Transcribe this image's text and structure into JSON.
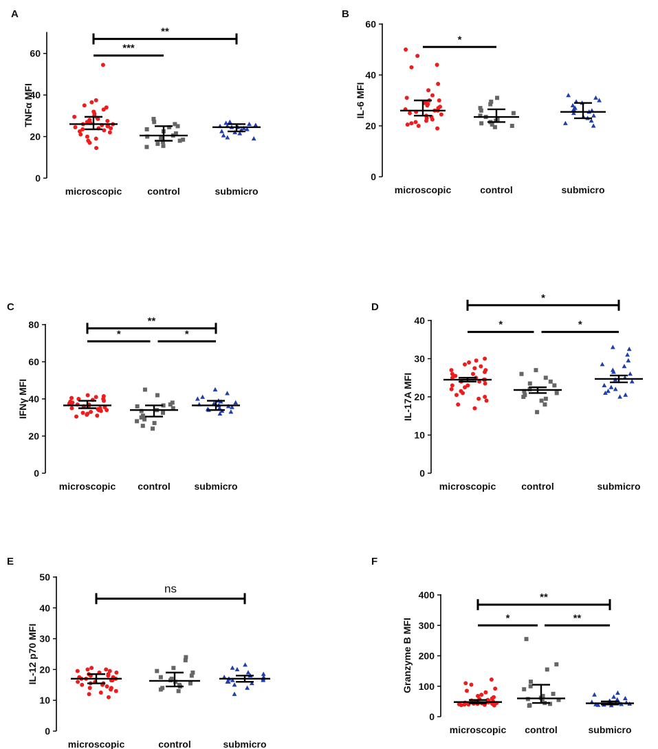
{
  "figure": {
    "colors": {
      "microscopic": "#ee1c1c",
      "control": "#666666",
      "submicro": "#1f3fae"
    },
    "marker_shapes": {
      "microscopic": "circle",
      "control": "square",
      "submicro": "triangle"
    }
  },
  "chart_data": [
    {
      "panel": "A",
      "type": "scatter",
      "ylabel": "TNFα MFI",
      "categories": [
        "microscopic",
        "control",
        "submicro"
      ],
      "ylim": [
        0,
        70
      ],
      "yticks": [
        0,
        20,
        40,
        60
      ],
      "series": [
        {
          "name": "microscopic",
          "mean": 26,
          "err": [
            23.5,
            29.5
          ],
          "values": [
            54.5,
            37.5,
            36.5,
            35,
            34,
            33,
            32,
            31,
            30,
            29.5,
            29,
            28.5,
            28,
            27.5,
            27,
            26.5,
            26,
            26,
            25.5,
            25,
            25,
            24.5,
            24,
            24,
            23.5,
            23,
            22.5,
            22,
            21,
            20,
            19,
            18,
            17,
            14.5
          ]
        },
        {
          "name": "control",
          "mean": 20.5,
          "err": [
            18,
            25
          ],
          "values": [
            28.5,
            27,
            26,
            25,
            24.5,
            23.5,
            22.5,
            21.5,
            20.5,
            20,
            19.5,
            18.5,
            18,
            17.5,
            16.5,
            15.5,
            15
          ]
        },
        {
          "name": "submicro",
          "mean": 24.5,
          "err": [
            22.5,
            26
          ],
          "values": [
            27,
            26.5,
            26,
            25.5,
            25,
            25,
            24.5,
            24.5,
            24,
            23.5,
            23,
            23,
            22.5,
            22,
            21.5,
            20.5,
            19.5,
            19
          ]
        }
      ],
      "brackets": [
        {
          "from": 0,
          "to": 2,
          "level": 67,
          "label": "**"
        },
        {
          "from": 0,
          "to": 1,
          "level": 59,
          "label": "***"
        }
      ]
    },
    {
      "panel": "B",
      "type": "scatter",
      "ylabel": "IL-6 MFI",
      "categories": [
        "microscopic",
        "control",
        "submicro"
      ],
      "ylim": [
        0,
        60
      ],
      "yticks": [
        0,
        20,
        40,
        60
      ],
      "series": [
        {
          "name": "microscopic",
          "mean": 26,
          "err": [
            24,
            30
          ],
          "values": [
            50,
            47.5,
            44,
            43,
            36.5,
            34,
            32,
            31,
            30,
            30,
            29.5,
            29,
            28.5,
            28,
            27.5,
            27,
            26.5,
            26,
            26,
            25.5,
            25,
            24.5,
            24,
            23.5,
            23,
            22.5,
            22,
            21.5,
            21,
            20.5,
            20,
            19
          ]
        },
        {
          "name": "control",
          "mean": 23.5,
          "err": [
            21.5,
            26.5
          ],
          "values": [
            31,
            29.5,
            28.5,
            27,
            26,
            25,
            24,
            23.5,
            22.5,
            22,
            21.5,
            21,
            20.5,
            20,
            19.5
          ]
        },
        {
          "name": "submicro",
          "mean": 25.5,
          "err": [
            23,
            29
          ],
          "values": [
            32,
            31,
            30,
            29.5,
            29,
            28,
            27,
            26.5,
            26,
            25.5,
            25,
            24,
            23.5,
            23,
            22,
            21,
            20
          ]
        }
      ],
      "brackets": [
        {
          "from": 0,
          "to": 1,
          "level": 51,
          "label": "*"
        }
      ]
    },
    {
      "panel": "C",
      "type": "scatter",
      "ylabel": "IFNγ MFI",
      "categories": [
        "microscopic",
        "control",
        "submicro"
      ],
      "ylim": [
        0,
        80
      ],
      "yticks": [
        0,
        20,
        40,
        60,
        80
      ],
      "series": [
        {
          "name": "microscopic",
          "mean": 36.5,
          "err": [
            35,
            39
          ],
          "values": [
            42,
            41.5,
            41,
            40.5,
            40,
            40,
            39.5,
            39,
            38.5,
            38,
            38,
            37.5,
            37,
            37,
            36.5,
            36,
            36,
            35.5,
            35,
            35,
            34.5,
            34,
            34,
            33.5,
            33,
            32.5,
            32,
            31.5,
            31,
            30.5
          ]
        },
        {
          "name": "control",
          "mean": 34,
          "err": [
            30.5,
            36.5
          ],
          "values": [
            45,
            42,
            38,
            37,
            36.5,
            36,
            35,
            34,
            33.5,
            32.5,
            31,
            30,
            29,
            28,
            27,
            25.5,
            24
          ]
        },
        {
          "name": "submicro",
          "mean": 36.5,
          "err": [
            34,
            39
          ],
          "values": [
            45,
            43,
            41,
            40,
            39,
            38.5,
            38,
            37.5,
            37,
            36.5,
            36,
            35.5,
            35,
            34.5,
            34,
            33.5,
            33,
            32
          ]
        }
      ],
      "brackets": [
        {
          "from": 0,
          "to": 2,
          "level": 78,
          "label": "**"
        },
        {
          "from": 0,
          "to": 1,
          "level": 71,
          "label": "*"
        },
        {
          "from": 1,
          "to": 2,
          "level": 71,
          "label": "*"
        }
      ]
    },
    {
      "panel": "D",
      "type": "scatter",
      "ylabel": "IL-17A MFI",
      "categories": [
        "microscopic",
        "control",
        "submicro"
      ],
      "ylim": [
        0,
        40
      ],
      "yticks": [
        0,
        10,
        20,
        30,
        40
      ],
      "series": [
        {
          "name": "microscopic",
          "mean": 24.5,
          "err": [
            24,
            25
          ],
          "values": [
            30,
            29.5,
            29,
            28.5,
            28,
            27.5,
            27,
            27,
            26.5,
            26,
            26,
            25.5,
            25,
            25,
            24.5,
            24.5,
            24,
            24,
            23.5,
            23,
            23,
            22.5,
            22,
            21.5,
            21,
            20.5,
            20,
            19.5,
            19,
            18,
            17
          ]
        },
        {
          "name": "control",
          "mean": 21.8,
          "err": [
            21,
            22.5
          ],
          "values": [
            27,
            26,
            25,
            24,
            23.5,
            23,
            22,
            21.5,
            21,
            20.5,
            20,
            19.5,
            19,
            18,
            16
          ]
        },
        {
          "name": "submicro",
          "mean": 24.7,
          "err": [
            23.8,
            25.6
          ],
          "values": [
            33,
            32.5,
            31,
            29.5,
            28.5,
            28,
            27,
            26.5,
            26,
            25,
            24.5,
            24,
            23,
            22.5,
            22,
            21.5,
            21,
            20.5,
            20
          ]
        }
      ],
      "brackets": [
        {
          "from": 0,
          "to": 2,
          "level": 44,
          "label": "*"
        },
        {
          "from": 0,
          "to": 1,
          "level": 37,
          "label": "*"
        },
        {
          "from": 1,
          "to": 2,
          "level": 37,
          "label": "*"
        }
      ]
    },
    {
      "panel": "E",
      "type": "scatter",
      "ylabel": "IL-12 p70 MFI",
      "categories": [
        "microscopic",
        "control",
        "submicro"
      ],
      "ylim": [
        0,
        50
      ],
      "yticks": [
        0,
        10,
        20,
        30,
        40,
        50
      ],
      "series": [
        {
          "name": "microscopic",
          "mean": 17,
          "err": [
            15.5,
            18.5
          ],
          "values": [
            20.5,
            20,
            20,
            19.5,
            19.5,
            19,
            19,
            18.5,
            18.5,
            18,
            18,
            17.5,
            17.5,
            17,
            17,
            17,
            16.5,
            16.5,
            16,
            16,
            15.5,
            15.5,
            15,
            15,
            14.5,
            14,
            14,
            13.5,
            13,
            12.5,
            12,
            11
          ]
        },
        {
          "name": "control",
          "mean": 16.3,
          "err": [
            14.5,
            19
          ],
          "values": [
            24,
            23,
            20.5,
            19.5,
            19,
            18,
            17.5,
            17,
            16.5,
            16,
            15.5,
            15,
            14.5,
            14,
            13.5,
            13
          ]
        },
        {
          "name": "submicro",
          "mean": 17,
          "err": [
            16,
            18
          ],
          "values": [
            21.5,
            20.5,
            20,
            19,
            18.5,
            18,
            17.5,
            17.5,
            17,
            17,
            16.5,
            16.5,
            16,
            16,
            15.5,
            15,
            14,
            12
          ]
        }
      ],
      "brackets": [
        {
          "from": 0,
          "to": 2,
          "level": 43,
          "label": "ns"
        }
      ]
    },
    {
      "panel": "F",
      "type": "scatter",
      "ylabel": "Granzyme B MFI",
      "categories": [
        "microscopic",
        "control",
        "submicro"
      ],
      "ylim": [
        0,
        400
      ],
      "yticks": [
        0,
        100,
        200,
        300,
        400
      ],
      "series": [
        {
          "name": "microscopic",
          "mean": 48,
          "err": [
            44,
            55
          ],
          "values": [
            122,
            110,
            105,
            92,
            85,
            80,
            72,
            68,
            64,
            60,
            58,
            55,
            53,
            52,
            50,
            50,
            49,
            48,
            47,
            46,
            45,
            45,
            44,
            44,
            43,
            42,
            42,
            41,
            40,
            40,
            39,
            38,
            37
          ]
        },
        {
          "name": "control",
          "mean": 60,
          "err": [
            45,
            105
          ],
          "values": [
            255,
            172,
            155,
            115,
            100,
            90,
            75,
            68,
            62,
            58,
            55,
            50,
            45,
            42,
            38,
            36
          ]
        },
        {
          "name": "submicro",
          "mean": 44,
          "err": [
            40,
            50
          ],
          "values": [
            78,
            72,
            65,
            60,
            56,
            52,
            50,
            48,
            46,
            45,
            44,
            43,
            42,
            41,
            40,
            39,
            38,
            37
          ]
        }
      ],
      "brackets": [
        {
          "from": 0,
          "to": 2,
          "level": 368,
          "label": "**"
        },
        {
          "from": 0,
          "to": 1,
          "level": 300,
          "label": "*"
        },
        {
          "from": 1,
          "to": 2,
          "level": 300,
          "label": "**"
        }
      ]
    }
  ]
}
